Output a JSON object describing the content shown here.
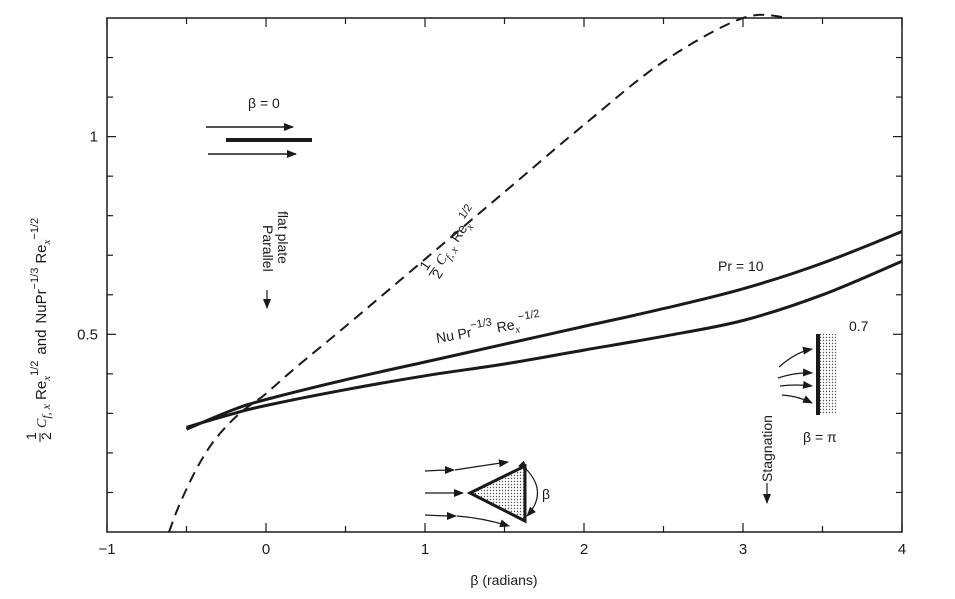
{
  "chart_data": {
    "type": "line",
    "xlabel": "β (radians)",
    "ylabel": {
      "frac_num": "1",
      "frac_den": "2",
      "c": "C",
      "c_sub": "f, x",
      "re1": "Re",
      "re1_sub": "x",
      "re1_sup": "1/2",
      "and": "and",
      "nu": "NuPr",
      "nu_sup": "−1/3",
      "re2": "Re",
      "re2_sub": "x",
      "re2_sup": "−1/2"
    },
    "xlim": [
      -1,
      4
    ],
    "ylim": [
      0,
      1.3
    ],
    "xticks": [
      -1,
      0,
      1,
      2,
      3,
      4
    ],
    "xtick_labels": [
      "−1",
      "0",
      "1",
      "2",
      "3",
      "4"
    ],
    "yticks": [
      0.5,
      1
    ],
    "ytick_labels": [
      "0.5",
      "1"
    ],
    "series": [
      {
        "name": "½ C_f,x Re_x^1/2",
        "style": "dashed",
        "x": [
          -0.61,
          -0.55,
          -0.45,
          -0.35,
          -0.25,
          -0.15,
          -0.05,
          0,
          0.2,
          0.5,
          1.0,
          1.5,
          2.0,
          2.5,
          3.0,
          3.29
        ],
        "y": [
          0,
          0.064,
          0.15,
          0.218,
          0.267,
          0.305,
          0.335,
          0.35,
          0.42,
          0.52,
          0.69,
          0.86,
          1.03,
          1.19,
          1.3,
          1.3
        ]
      },
      {
        "name": "Pr = 10",
        "style": "solid",
        "x": [
          -0.5,
          -0.2,
          0,
          0.5,
          1.0,
          1.5,
          2.0,
          2.5,
          3.0,
          3.5,
          4.0
        ],
        "y": [
          0.26,
          0.31,
          0.335,
          0.385,
          0.43,
          0.475,
          0.52,
          0.565,
          0.615,
          0.68,
          0.76
        ]
      },
      {
        "name": "0.7",
        "style": "solid",
        "x": [
          -0.5,
          -0.2,
          0,
          0.5,
          1.0,
          1.5,
          2.0,
          2.5,
          3.0,
          3.5,
          4.0
        ],
        "y": [
          0.265,
          0.3,
          0.32,
          0.36,
          0.395,
          0.425,
          0.46,
          0.495,
          0.535,
          0.6,
          0.685
        ]
      }
    ],
    "annotations": {
      "beta_zero": "β = 0",
      "parallel": "Parallel",
      "flat_plate": "flat plate",
      "cf_curve_label": {
        "frac_num": "1",
        "frac_den": "2",
        "c": "C",
        "c_sub": "f, x",
        "re": "Re",
        "re_sub": "x",
        "re_sup": "1/2"
      },
      "nu_curve_label": {
        "nu": "Nu Pr",
        "nu_sup": "−1/3",
        "re": "Re",
        "re_sub": "x",
        "re_sup": "−1/2"
      },
      "pr10": "Pr = 10",
      "pr07": "0.7",
      "stagnation": "Stagnation",
      "beta_pi": "β = π",
      "wedge_beta": "β"
    }
  }
}
